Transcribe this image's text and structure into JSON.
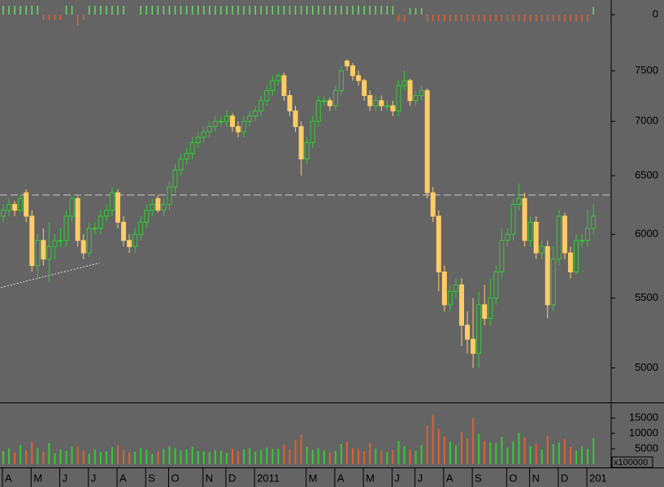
{
  "chart_data": {
    "type": "candlestick",
    "log": true,
    "ylim": [
      4770,
      8260
    ],
    "yticks": [
      5000,
      5500,
      6000,
      6500,
      7000,
      7500
    ],
    "up_color": "#33cc33",
    "down_color": "#ffcc66",
    "hline": 6330,
    "hline_color": "#c8c8c8",
    "trendline": {
      "x": [
        -0.4,
        16.8
      ],
      "y": [
        5580,
        5770
      ]
    },
    "categories": [
      "A",
      null,
      null,
      null,
      null,
      "M",
      null,
      null,
      null,
      null,
      "J",
      null,
      null,
      null,
      null,
      "J",
      null,
      null,
      null,
      null,
      "A",
      null,
      null,
      null,
      null,
      "S",
      null,
      null,
      null,
      "O",
      null,
      null,
      null,
      null,
      null,
      "N",
      null,
      null,
      null,
      "D",
      null,
      null,
      null,
      null,
      "2011",
      null,
      null,
      null,
      null,
      null,
      null,
      null,
      null,
      "M",
      null,
      null,
      null,
      null,
      "A",
      null,
      null,
      null,
      null,
      "M",
      null,
      null,
      null,
      null,
      "J",
      null,
      null,
      null,
      "J",
      null,
      null,
      null,
      null,
      "A",
      null,
      null,
      null,
      null,
      "S",
      null,
      null,
      null,
      null,
      null,
      "O",
      null,
      null,
      null,
      "N",
      null,
      null,
      null,
      null,
      "D",
      null,
      null,
      null,
      null,
      "201",
      null
    ],
    "ohlc": [
      [
        6150,
        6250,
        6100,
        6200
      ],
      [
        6200,
        6300,
        6150,
        6250
      ],
      [
        6250,
        6280,
        6150,
        6200
      ],
      [
        6200,
        6330,
        6180,
        6300
      ],
      [
        6350,
        6380,
        6100,
        6150
      ],
      [
        6150,
        6200,
        5700,
        5750
      ],
      [
        5750,
        6000,
        5650,
        5950
      ],
      [
        5950,
        6050,
        5750,
        5800
      ],
      [
        5800,
        6100,
        5620,
        5900
      ],
      [
        5900,
        6000,
        5800,
        5950
      ],
      [
        5950,
        6050,
        5900,
        5950
      ],
      [
        5950,
        6200,
        5900,
        6150
      ],
      [
        6150,
        6330,
        6100,
        6300
      ],
      [
        6300,
        6320,
        5900,
        5950
      ],
      [
        5950,
        6000,
        5800,
        5850
      ],
      [
        5850,
        6100,
        5820,
        6050
      ],
      [
        6050,
        6100,
        6000,
        6050
      ],
      [
        6050,
        6200,
        6000,
        6150
      ],
      [
        6150,
        6250,
        6100,
        6200
      ],
      [
        6200,
        6400,
        6150,
        6350
      ],
      [
        6350,
        6380,
        6050,
        6100
      ],
      [
        6100,
        6150,
        5900,
        5950
      ],
      [
        5950,
        6000,
        5850,
        5900
      ],
      [
        5900,
        6050,
        5850,
        6000
      ],
      [
        6000,
        6150,
        5950,
        6100
      ],
      [
        6100,
        6250,
        6050,
        6200
      ],
      [
        6200,
        6300,
        6150,
        6250
      ],
      [
        6300,
        6330,
        6180,
        6200
      ],
      [
        6200,
        6300,
        6150,
        6250
      ],
      [
        6250,
        6450,
        6200,
        6400
      ],
      [
        6400,
        6600,
        6350,
        6550
      ],
      [
        6550,
        6700,
        6500,
        6650
      ],
      [
        6650,
        6750,
        6600,
        6700
      ],
      [
        6700,
        6850,
        6650,
        6800
      ],
      [
        6800,
        6900,
        6750,
        6850
      ],
      [
        6850,
        6950,
        6800,
        6900
      ],
      [
        6900,
        7000,
        6850,
        6950
      ],
      [
        6950,
        7050,
        6900,
        7000
      ],
      [
        7000,
        7050,
        6950,
        7000
      ],
      [
        7000,
        7100,
        6950,
        7050
      ],
      [
        7050,
        7080,
        6900,
        6950
      ],
      [
        6950,
        7000,
        6850,
        6900
      ],
      [
        6900,
        7050,
        6850,
        7000
      ],
      [
        7000,
        7100,
        6950,
        7050
      ],
      [
        7050,
        7150,
        7000,
        7100
      ],
      [
        7100,
        7250,
        7050,
        7200
      ],
      [
        7200,
        7350,
        7150,
        7300
      ],
      [
        7300,
        7450,
        7250,
        7400
      ],
      [
        7400,
        7480,
        7350,
        7450
      ],
      [
        7450,
        7480,
        7200,
        7250
      ],
      [
        7250,
        7300,
        7050,
        7100
      ],
      [
        7100,
        7150,
        6900,
        6950
      ],
      [
        6950,
        7000,
        6500,
        6650
      ],
      [
        6650,
        6850,
        6600,
        6800
      ],
      [
        6800,
        7050,
        6750,
        7000
      ],
      [
        7000,
        7250,
        6950,
        7200
      ],
      [
        7200,
        7250,
        7150,
        7200
      ],
      [
        7200,
        7230,
        7100,
        7150
      ],
      [
        7150,
        7350,
        7100,
        7300
      ],
      [
        7300,
        7550,
        7250,
        7500
      ],
      [
        7600,
        7620,
        7500,
        7550
      ],
      [
        7550,
        7580,
        7400,
        7450
      ],
      [
        7450,
        7500,
        7350,
        7400
      ],
      [
        7400,
        7420,
        7200,
        7250
      ],
      [
        7250,
        7300,
        7100,
        7150
      ],
      [
        7150,
        7250,
        7100,
        7200
      ],
      [
        7200,
        7250,
        7100,
        7150
      ],
      [
        7150,
        7200,
        7100,
        7150
      ],
      [
        7150,
        7200,
        7050,
        7100
      ],
      [
        7100,
        7400,
        7050,
        7350
      ],
      [
        7350,
        7500,
        7300,
        7400
      ],
      [
        7400,
        7420,
        7150,
        7200
      ],
      [
        7200,
        7300,
        7150,
        7250
      ],
      [
        7250,
        7350,
        7200,
        7300
      ],
      [
        7300,
        7320,
        6300,
        6350
      ],
      [
        6350,
        6400,
        6100,
        6150
      ],
      [
        6150,
        6200,
        5550,
        5700
      ],
      [
        5700,
        5750,
        5400,
        5450
      ],
      [
        5450,
        5600,
        5400,
        5550
      ],
      [
        5550,
        5650,
        5500,
        5600
      ],
      [
        5600,
        5650,
        5150,
        5300
      ],
      [
        5300,
        5400,
        5100,
        5200
      ],
      [
        5200,
        5500,
        5000,
        5100
      ],
      [
        5100,
        5550,
        5000,
        5450
      ],
      [
        5450,
        5600,
        5300,
        5350
      ],
      [
        5350,
        5650,
        5300,
        5500
      ],
      [
        5500,
        5750,
        5450,
        5700
      ],
      [
        5700,
        6050,
        5650,
        5950
      ],
      [
        5950,
        6050,
        5900,
        6000
      ],
      [
        6000,
        6300,
        5950,
        6250
      ],
      [
        6250,
        6430,
        6200,
        6300
      ],
      [
        6300,
        6350,
        5900,
        5950
      ],
      [
        5950,
        6150,
        5900,
        6100
      ],
      [
        6100,
        6150,
        5800,
        5850
      ],
      [
        5850,
        5950,
        5800,
        5900
      ],
      [
        5900,
        5950,
        5350,
        5450
      ],
      [
        5450,
        5900,
        5400,
        5800
      ],
      [
        5800,
        6200,
        5750,
        6150
      ],
      [
        6150,
        6180,
        5800,
        5850
      ],
      [
        5850,
        5900,
        5650,
        5700
      ],
      [
        5700,
        6000,
        5680,
        5950
      ],
      [
        5950,
        6000,
        5900,
        5950
      ],
      [
        5950,
        6200,
        5900,
        6050
      ],
      [
        6050,
        6250,
        6000,
        6150
      ]
    ],
    "volume": {
      "unit_label": "x100000",
      "ylim": [
        0,
        19500
      ],
      "yticks": [
        5000,
        10000,
        15000
      ],
      "up_color": "#33cc33",
      "down_color": "#e06030",
      "values": [
        4200,
        5100,
        3800,
        6200,
        4500,
        7500,
        5200,
        4100,
        6900,
        3600,
        4800,
        4300,
        5600,
        5900,
        4400,
        3500,
        4700,
        3900,
        4200,
        5500,
        6100,
        4600,
        3800,
        4000,
        5300,
        4700,
        3400,
        4100,
        4900,
        5800,
        5200,
        4500,
        4800,
        5600,
        4300,
        4100,
        3900,
        4600,
        4400,
        3700,
        5000,
        4200,
        4800,
        5300,
        4100,
        4600,
        5400,
        4900,
        5100,
        6300,
        4800,
        7800,
        9500,
        5600,
        4700,
        5200,
        4500,
        3800,
        4300,
        6600,
        7200,
        5300,
        4900,
        4200,
        6800,
        5100,
        4400,
        3900,
        4600,
        7500,
        5800,
        4700,
        4300,
        6200,
        12500,
        16000,
        11500,
        9000,
        7200,
        6100,
        10500,
        8300,
        15000,
        9800,
        7600,
        7100,
        6800,
        8900,
        5400,
        7300,
        10200,
        8600,
        5900,
        6700,
        4800,
        9200,
        6500,
        7000,
        8100,
        5600,
        4300,
        5800,
        4900,
        8500
      ]
    },
    "indicator": {
      "ylim": [
        -1.1,
        1.1
      ],
      "yticks": [
        0
      ],
      "pos_color": "#66dd66",
      "neg_color": "#e06030",
      "values": [
        0.8,
        0.8,
        0.8,
        0.8,
        0.8,
        0.8,
        0.8,
        -0.5,
        -0.5,
        -0.5,
        -0.5,
        0.8,
        0.8,
        -1,
        -0.5,
        0.8,
        0.8,
        0.8,
        0.8,
        0.8,
        0.8,
        0.8,
        0,
        0,
        0.8,
        0.8,
        0.8,
        0.8,
        0.8,
        0.8,
        0.8,
        0.8,
        0.8,
        0.8,
        0.8,
        0.8,
        0.8,
        0.8,
        0.8,
        0.8,
        0.8,
        0.8,
        0.8,
        0.8,
        0.8,
        0.8,
        0.8,
        0.8,
        0.8,
        0.8,
        0.8,
        0.8,
        0.8,
        0.8,
        0.8,
        0.8,
        0.8,
        0.8,
        0.8,
        0.8,
        0.8,
        0.8,
        0.8,
        0.8,
        0.8,
        0.8,
        0.8,
        0.8,
        0.8,
        -0.6,
        -0.6,
        0.6,
        0.6,
        0.6,
        -0.6,
        -0.6,
        -0.6,
        -0.6,
        -0.6,
        -0.6,
        -0.6,
        -0.6,
        -0.6,
        -0.6,
        -0.6,
        -0.6,
        -0.6,
        -0.6,
        -0.6,
        -0.6,
        -0.6,
        -0.6,
        -0.6,
        -0.6,
        -0.6,
        -0.6,
        -0.6,
        -0.6,
        -0.6,
        -0.6,
        -0.6,
        -0.6,
        -0.6,
        0.7
      ]
    }
  }
}
